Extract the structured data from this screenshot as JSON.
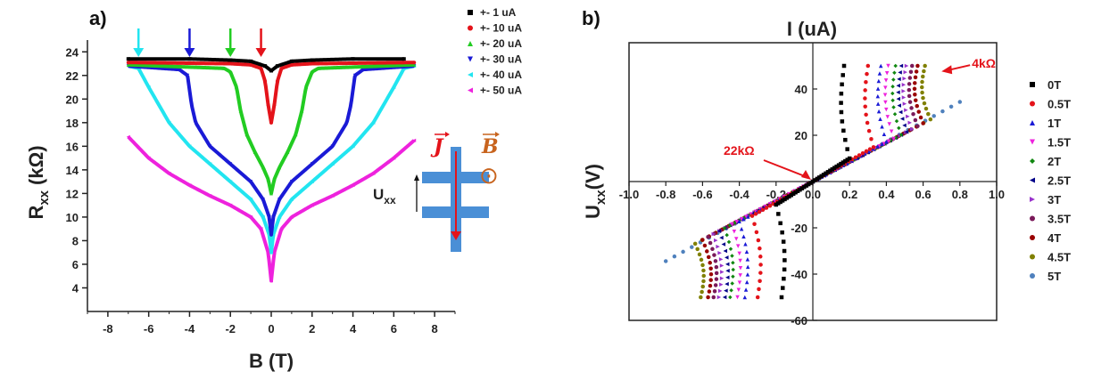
{
  "chart_data": [
    {
      "panel_label": "a)",
      "type": "line",
      "xlabel": "B (T)",
      "ylabel_main": "R",
      "ylabel_sub": "xx",
      "ylabel_unit": "(kΩ)",
      "xlim": [
        -9,
        9
      ],
      "ylim": [
        2,
        25
      ],
      "xticks": [
        -8,
        -6,
        -4,
        -2,
        0,
        2,
        4,
        6,
        8
      ],
      "yticks": [
        4,
        6,
        8,
        10,
        12,
        14,
        16,
        18,
        20,
        22,
        24
      ],
      "series": [
        {
          "name": "+- 1 uA",
          "color": "#000000",
          "marker": "square",
          "x": [
            -7,
            -4,
            -2,
            -1,
            -0.3,
            0,
            0.3,
            1,
            2,
            4,
            6.5
          ],
          "y": [
            23.4,
            23.4,
            23.3,
            23.2,
            22.8,
            22.4,
            22.8,
            23.2,
            23.3,
            23.4,
            23.4
          ]
        },
        {
          "name": "+- 10 uA",
          "color": "#e4131a",
          "marker": "circle",
          "x": [
            -7,
            -2,
            -1,
            -0.5,
            -0.3,
            -0.15,
            0,
            0.15,
            0.3,
            0.5,
            1,
            2,
            7
          ],
          "y": [
            23.1,
            23.0,
            22.9,
            22.6,
            21.5,
            19.5,
            18.0,
            19.5,
            21.5,
            22.6,
            22.9,
            23.0,
            23.1
          ]
        },
        {
          "name": "+- 20 uA",
          "color": "#22cc22",
          "marker": "triangle-up",
          "x": [
            -7,
            -2.3,
            -2,
            -1.7,
            -1.5,
            -1.2,
            -0.8,
            -0.4,
            -0.15,
            0,
            0.15,
            0.4,
            0.8,
            1.2,
            1.5,
            1.7,
            2,
            2.3,
            7
          ],
          "y": [
            22.9,
            22.6,
            22.3,
            21.0,
            19.0,
            17.0,
            15.5,
            14.2,
            13.2,
            12.0,
            13.2,
            14.2,
            15.5,
            17.0,
            19.0,
            21.0,
            22.3,
            22.6,
            22.9
          ]
        },
        {
          "name": "+- 30 uA",
          "color": "#1a1ad6",
          "marker": "triangle-down",
          "x": [
            -7,
            -4.5,
            -4.1,
            -3.9,
            -3.7,
            -3,
            -2,
            -1,
            -0.4,
            -0.1,
            0,
            0.1,
            0.4,
            1,
            2,
            3,
            3.7,
            3.9,
            4.1,
            4.5,
            7
          ],
          "y": [
            22.8,
            22.5,
            22.0,
            19.5,
            18.0,
            16.0,
            14.5,
            13.0,
            11.5,
            10.0,
            8.5,
            10.0,
            11.5,
            13.0,
            14.5,
            16.0,
            18.0,
            19.5,
            22.0,
            22.5,
            22.8
          ]
        },
        {
          "name": "+- 40 uA",
          "color": "#22e5f0",
          "marker": "triangle-left",
          "x": [
            -7,
            -6.5,
            -6,
            -5,
            -4,
            -3,
            -2,
            -1,
            -0.4,
            -0.1,
            0,
            0.1,
            0.4,
            1,
            2,
            3,
            4,
            5,
            6,
            6.5,
            7
          ],
          "y": [
            22.8,
            22.6,
            21.0,
            18.0,
            16.0,
            14.5,
            13.0,
            11.5,
            10.0,
            8.5,
            7.0,
            8.5,
            10.0,
            11.5,
            13.0,
            14.5,
            16.0,
            18.0,
            21.0,
            22.6,
            22.8
          ]
        },
        {
          "name": "+- 50 uA",
          "color": "#ee22dd",
          "marker": "triangle-left",
          "x": [
            -7,
            -6,
            -5,
            -4,
            -3,
            -2,
            -1,
            -0.5,
            -0.15,
            0,
            0.15,
            0.5,
            1,
            2,
            3,
            4,
            5,
            6,
            7
          ],
          "y": [
            16.8,
            15.0,
            13.7,
            12.7,
            11.8,
            11.0,
            10.0,
            9.0,
            7.0,
            4.6,
            7.0,
            9.0,
            10.0,
            11.0,
            11.8,
            12.7,
            13.7,
            15.0,
            16.5
          ]
        }
      ],
      "arrows": [
        {
          "x": -6.5,
          "color": "#22e5f0"
        },
        {
          "x": -4.0,
          "color": "#1a1ad6"
        },
        {
          "x": -2.0,
          "color": "#22cc22"
        },
        {
          "x": -0.5,
          "color": "#e4131a"
        }
      ],
      "inset": {
        "current_label": "J",
        "field_label": "B",
        "voltage_label_main": "U",
        "voltage_label_sub": "xx",
        "field_symbol": "⊙"
      }
    },
    {
      "panel_label": "b)",
      "type": "scatter",
      "xlabel": "I (uA)",
      "ylabel_main": "U",
      "ylabel_sub": "xx",
      "ylabel_unit": "(V)",
      "xlim": [
        -1.0,
        1.0
      ],
      "ylim": [
        -60,
        60
      ],
      "xticks": [
        -1.0,
        -0.8,
        -0.6,
        -0.4,
        -0.2,
        0.0,
        0.2,
        0.4,
        0.6,
        0.8,
        1.0
      ],
      "xtick_labels": [
        "-1.0",
        "-0.8",
        "-0.6",
        "-0.4",
        "-0.2",
        "0.0",
        "0.2",
        "0.4",
        "0.6",
        "0.8",
        "1.0"
      ],
      "yticks": [
        -60,
        -40,
        -20,
        20,
        40
      ],
      "ytick_labels": [
        "-60",
        "-40",
        "-20",
        "20",
        "40"
      ],
      "series": [
        {
          "name": "0T",
          "color": "#000000",
          "marker": "square",
          "i_sat": 0.2,
          "slope": 50
        },
        {
          "name": "0.5T",
          "color": "#e4131a",
          "marker": "circle",
          "i_sat": 0.33,
          "slope": 45
        },
        {
          "name": "1T",
          "color": "#1a1ad6",
          "marker": "triangle-up",
          "i_sat": 0.4,
          "slope": 43
        },
        {
          "name": "1.5T",
          "color": "#ee22dd",
          "marker": "triangle-down",
          "i_sat": 0.44,
          "slope": 42
        },
        {
          "name": "2T",
          "color": "#118811",
          "marker": "diamond",
          "i_sat": 0.48,
          "slope": 42
        },
        {
          "name": "2.5T",
          "color": "#000088",
          "marker": "triangle-left",
          "i_sat": 0.51,
          "slope": 42
        },
        {
          "name": "3T",
          "color": "#9933cc",
          "marker": "triangle-right",
          "i_sat": 0.54,
          "slope": 42
        },
        {
          "name": "3.5T",
          "color": "#7a1a5a",
          "marker": "hexagon",
          "i_sat": 0.57,
          "slope": 42
        },
        {
          "name": "4T",
          "color": "#990000",
          "marker": "star",
          "i_sat": 0.6,
          "slope": 42
        },
        {
          "name": "4.5T",
          "color": "#808000",
          "marker": "pentagon",
          "i_sat": 0.64,
          "slope": 42
        },
        {
          "name": "5T",
          "color": "#4f81bd",
          "marker": "circle",
          "i_sat": 0.8,
          "slope": 43
        }
      ],
      "annotations": [
        {
          "text": "22kΩ",
          "x": 0.0,
          "y": 0.0,
          "color": "#e4131a"
        },
        {
          "text": "4kΩ",
          "x": 0.7,
          "y": 48.0,
          "color": "#e4131a"
        }
      ]
    }
  ]
}
